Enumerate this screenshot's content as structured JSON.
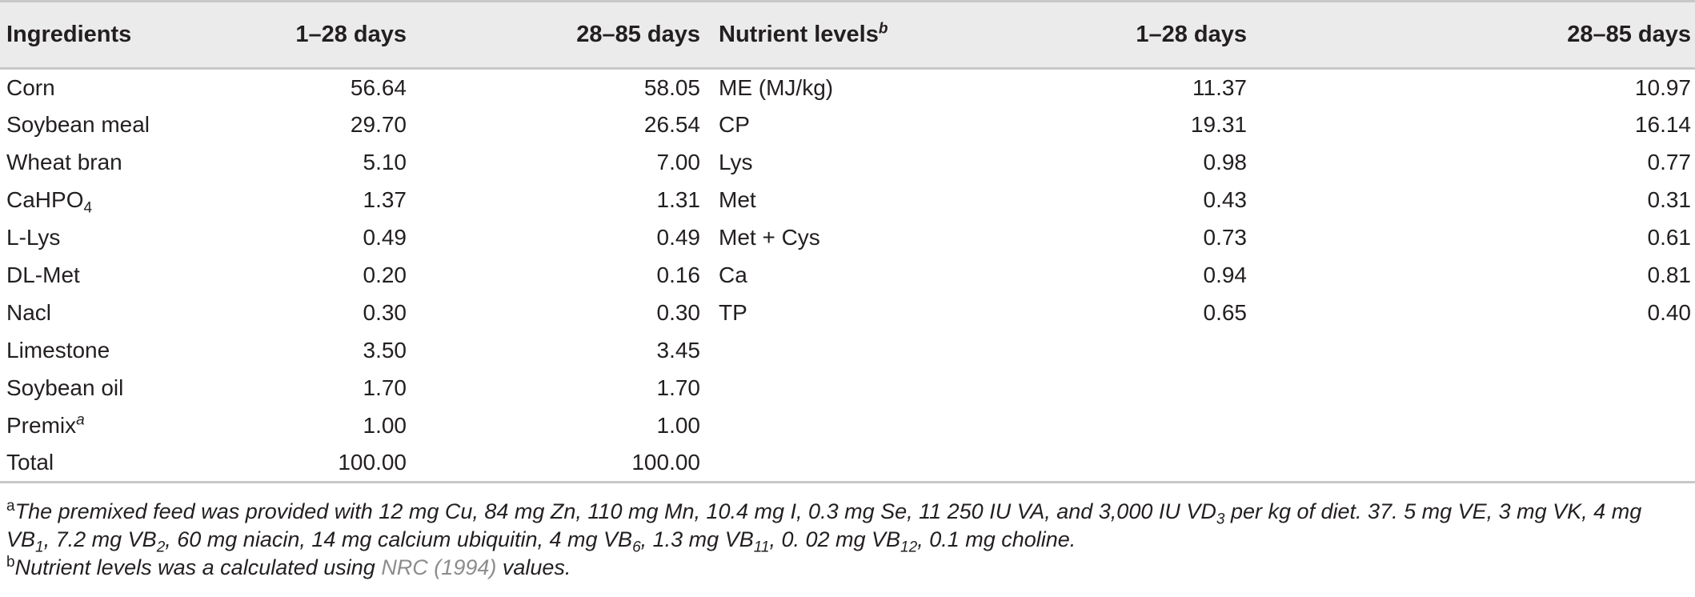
{
  "table": {
    "headers": {
      "ingredients": "Ingredients",
      "ing_d1": "1–28 days",
      "ing_d2": "28–85 days",
      "nutrient_levels": "Nutrient levels",
      "nutrient_levels_mark": "b",
      "nut_d1": "1–28 days",
      "nut_d2": "28–85 days"
    },
    "rows": [
      {
        "ing": "Corn",
        "ing_sub": "",
        "ing_mark": "",
        "d1": "56.64",
        "d2": "58.05",
        "nut": "ME (MJ/kg)",
        "n1": "11.37",
        "n2": "10.97"
      },
      {
        "ing": "Soybean meal",
        "ing_sub": "",
        "ing_mark": "",
        "d1": "29.70",
        "d2": "26.54",
        "nut": "CP",
        "n1": "19.31",
        "n2": "16.14"
      },
      {
        "ing": "Wheat bran",
        "ing_sub": "",
        "ing_mark": "",
        "d1": "5.10",
        "d2": "7.00",
        "nut": "Lys",
        "n1": "0.98",
        "n2": "0.77"
      },
      {
        "ing": "CaHPO",
        "ing_sub": "4",
        "ing_mark": "",
        "d1": "1.37",
        "d2": "1.31",
        "nut": "Met",
        "n1": "0.43",
        "n2": "0.31"
      },
      {
        "ing": "L-Lys",
        "ing_sub": "",
        "ing_mark": "",
        "d1": "0.49",
        "d2": "0.49",
        "nut": "Met + Cys",
        "n1": "0.73",
        "n2": "0.61"
      },
      {
        "ing": "DL-Met",
        "ing_sub": "",
        "ing_mark": "",
        "d1": "0.20",
        "d2": "0.16",
        "nut": "Ca",
        "n1": "0.94",
        "n2": "0.81"
      },
      {
        "ing": "Nacl",
        "ing_sub": "",
        "ing_mark": "",
        "d1": "0.30",
        "d2": "0.30",
        "nut": "TP",
        "n1": "0.65",
        "n2": "0.40"
      },
      {
        "ing": "Limestone",
        "ing_sub": "",
        "ing_mark": "",
        "d1": "3.50",
        "d2": "3.45",
        "nut": "",
        "n1": "",
        "n2": ""
      },
      {
        "ing": "Soybean oil",
        "ing_sub": "",
        "ing_mark": "",
        "d1": "1.70",
        "d2": "1.70",
        "nut": "",
        "n1": "",
        "n2": ""
      },
      {
        "ing": "Premix",
        "ing_sub": "",
        "ing_mark": "a",
        "d1": "1.00",
        "d2": "1.00",
        "nut": "",
        "n1": "",
        "n2": ""
      },
      {
        "ing": "Total",
        "ing_sub": "",
        "ing_mark": "",
        "d1": "100.00",
        "d2": "100.00",
        "nut": "",
        "n1": "",
        "n2": ""
      }
    ]
  },
  "footnotes": {
    "a": {
      "mark": "a",
      "p1": "The premixed feed was provided with 12 mg Cu, 84 mg Zn, 110 mg Mn, 10.4 mg I, 0.3 mg Se, 11 250 IU VA, and 3,000 IU VD",
      "s1": "3",
      "p2": " per kg of diet. 37. 5 mg VE, 3 mg VK, 4 mg VB",
      "s2": "1",
      "p3": ", 7.2 mg VB",
      "s3": "2",
      "p4": ", 60 mg niacin, 14 mg calcium ubiquitin, 4 mg VB",
      "s4": "6",
      "p5": ", 1.3 mg VB",
      "s5": "11",
      "p6": ", 0. 02 mg VB",
      "s6": "12",
      "p7": ", 0.1 mg choline."
    },
    "b": {
      "mark": "b",
      "before": "Nutrient levels was a calculated using ",
      "link": "NRC (1994)",
      "after": " values."
    }
  },
  "colors": {
    "header_bg": "#ebebeb",
    "rule": "#c8c8c8",
    "text": "#231f20",
    "link": "#8c8c8c"
  }
}
